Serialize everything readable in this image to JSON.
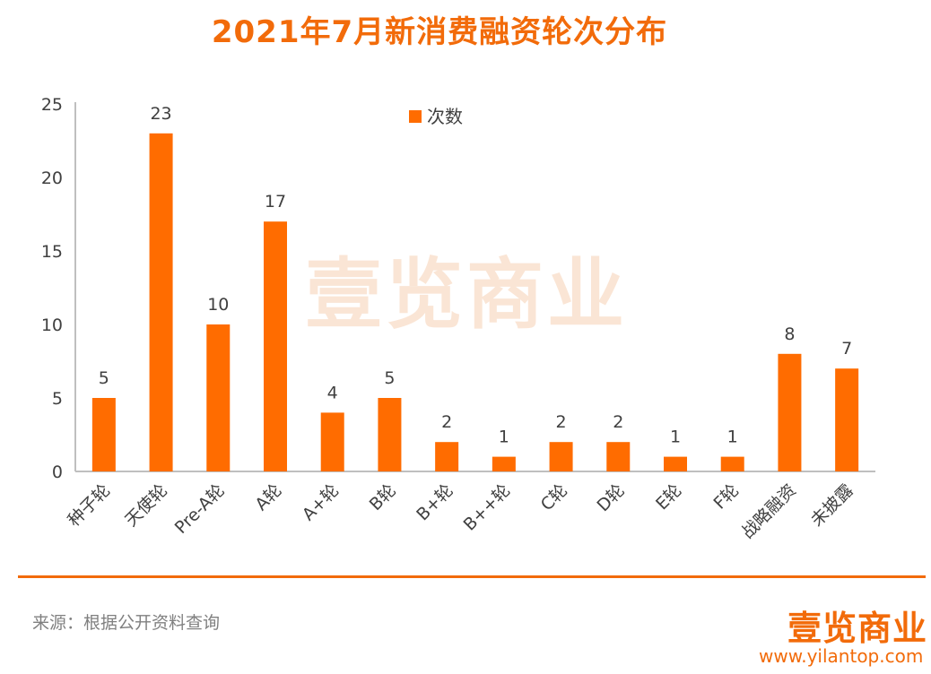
{
  "title": "2021年7月新消费融资轮次分布",
  "watermark": "壹览商业",
  "source": "来源：根据公开资料查询",
  "logo": {
    "text": "壹览商业",
    "url": "www.yilantop.com"
  },
  "colors": {
    "accent": "#F26B0A",
    "bar": "#FF6C00",
    "axis": "#BFBFBF"
  },
  "chart_data": {
    "type": "bar",
    "title": "2021年7月新消费融资轮次分布",
    "categories": [
      "种子轮",
      "天使轮",
      "Pre-A轮",
      "A轮",
      "A+轮",
      "B轮",
      "B+轮",
      "B++轮",
      "C轮",
      "D轮",
      "E轮",
      "F轮",
      "战略融资",
      "未披露"
    ],
    "series": [
      {
        "name": "次数",
        "values": [
          5,
          23,
          10,
          17,
          4,
          5,
          2,
          1,
          2,
          2,
          1,
          1,
          8,
          7
        ]
      }
    ],
    "ylim": [
      0,
      25
    ],
    "yticks": [
      0,
      5,
      10,
      15,
      20,
      25
    ],
    "grid": false,
    "legend": "top-center",
    "data_labels": true
  }
}
